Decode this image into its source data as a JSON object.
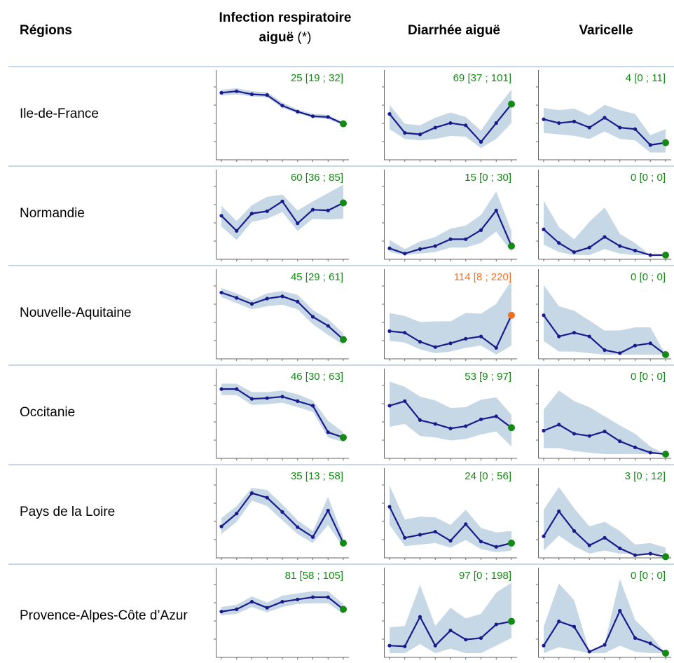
{
  "header": {
    "regions": "Régions",
    "ira_line1": "Infection respiratoire",
    "ira_line2": "aiguë",
    "ira_star": "(*)",
    "diarrhee": "Diarrhée aiguë",
    "varicelle": "Varicelle"
  },
  "colors": {
    "line": "#1a1a8c",
    "band": "#c6d7e6",
    "ok": "#138a13",
    "alert": "#f07020",
    "separator": "#c8d8e8"
  },
  "chart_data": [
    {
      "type": "line",
      "region": "Ile-de-France",
      "indicator": "Infection respiratoire aiguë",
      "annotation": "25 [19 ; 32]",
      "annotation_color": "ok",
      "last_point_color": "ok",
      "ylim": [
        0,
        100
      ],
      "values": [
        83,
        85,
        81,
        80,
        66,
        58,
        52,
        51,
        42
      ],
      "lower": [
        79,
        81,
        78,
        77,
        63,
        56,
        50,
        48,
        40
      ],
      "upper": [
        87,
        89,
        85,
        84,
        70,
        61,
        55,
        54,
        44
      ]
    },
    {
      "type": "line",
      "region": "Ile-de-France",
      "indicator": "Diarrhée aiguë",
      "annotation": "69 [37 ; 101]",
      "annotation_color": "ok",
      "last_point_color": "ok",
      "ylim": [
        0,
        100
      ],
      "values": [
        55,
        30,
        28,
        37,
        43,
        40,
        18,
        43,
        68
      ],
      "lower": [
        35,
        22,
        20,
        22,
        26,
        25,
        10,
        22,
        43
      ],
      "upper": [
        67,
        42,
        40,
        50,
        57,
        51,
        33,
        62,
        87
      ]
    },
    {
      "type": "line",
      "region": "Ile-de-France",
      "indicator": "Varicelle",
      "annotation": "4 [0 ; 11]",
      "annotation_color": "ok",
      "last_point_color": "ok",
      "ylim": [
        0,
        100
      ],
      "values": [
        48,
        43,
        45,
        37,
        50,
        37,
        35,
        14,
        17
      ],
      "lower": [
        30,
        28,
        26,
        22,
        32,
        22,
        20,
        4,
        4
      ],
      "upper": [
        63,
        60,
        62,
        53,
        67,
        60,
        55,
        27,
        35
      ]
    },
    {
      "type": "line",
      "region": "Normandie",
      "indicator": "Infection respiratoire aiguë",
      "annotation": "60 [36 ; 85]",
      "annotation_color": "ok",
      "last_point_color": "ok",
      "ylim": [
        0,
        100
      ],
      "values": [
        52,
        32,
        55,
        58,
        71,
        42,
        60,
        59,
        69
      ],
      "lower": [
        38,
        20,
        44,
        48,
        57,
        32,
        48,
        47,
        48
      ],
      "upper": [
        65,
        45,
        66,
        77,
        80,
        59,
        71,
        82,
        93
      ]
    },
    {
      "type": "line",
      "region": "Normandie",
      "indicator": "Diarrhée aiguë",
      "annotation": "15 [0 ; 30]",
      "annotation_color": "ok",
      "last_point_color": "ok",
      "ylim": [
        0,
        100
      ],
      "values": [
        9,
        2,
        8,
        12,
        21,
        21,
        33,
        59,
        12
      ],
      "lower": [
        4,
        0,
        2,
        4,
        10,
        10,
        16,
        31,
        4
      ],
      "upper": [
        20,
        8,
        18,
        24,
        35,
        39,
        53,
        84,
        32
      ]
    },
    {
      "type": "line",
      "region": "Normandie",
      "indicator": "Varicelle",
      "annotation": "0 [0 ; 0]",
      "annotation_color": "ok",
      "last_point_color": "ok",
      "ylim": [
        0,
        100
      ],
      "values": [
        34,
        16,
        4,
        10,
        24,
        12,
        6,
        0,
        0
      ],
      "lower": [
        14,
        4,
        0,
        0,
        8,
        2,
        0,
        0,
        0
      ],
      "upper": [
        72,
        37,
        21,
        44,
        63,
        28,
        16,
        0,
        0
      ]
    },
    {
      "type": "line",
      "region": "Nouvelle-Aquitaine",
      "indicator": "Infection respiratoire aiguë",
      "annotation": "45 [29 ; 61]",
      "annotation_color": "ok",
      "last_point_color": "ok",
      "ylim": [
        0,
        100
      ],
      "values": [
        82,
        75,
        67,
        74,
        77,
        70,
        50,
        38,
        20
      ],
      "lower": [
        76,
        68,
        60,
        64,
        66,
        60,
        40,
        26,
        13
      ],
      "upper": [
        88,
        81,
        72,
        81,
        84,
        79,
        59,
        47,
        28
      ]
    },
    {
      "type": "line",
      "region": "Nouvelle-Aquitaine",
      "indicator": "Diarrhée aiguë",
      "annotation": "114 [8 ; 220]",
      "annotation_color": "alert",
      "last_point_color": "alert",
      "ylim": [
        0,
        100
      ],
      "values": [
        31,
        29,
        17,
        10,
        15,
        21,
        24,
        9,
        52
      ],
      "lower": [
        18,
        16,
        7,
        2,
        4,
        9,
        12,
        0,
        12
      ],
      "upper": [
        55,
        51,
        43,
        44,
        44,
        55,
        54,
        67,
        98
      ]
    },
    {
      "type": "line",
      "region": "Nouvelle-Aquitaine",
      "indicator": "Varicelle",
      "annotation": "0 [0 ; 0]",
      "annotation_color": "ok",
      "last_point_color": "ok",
      "ylim": [
        0,
        100
      ],
      "values": [
        52,
        24,
        29,
        24,
        6,
        2,
        12,
        15,
        0
      ],
      "lower": [
        18,
        4,
        4,
        2,
        0,
        0,
        0,
        0,
        0
      ],
      "upper": [
        92,
        64,
        58,
        45,
        32,
        32,
        36,
        36,
        0
      ]
    },
    {
      "type": "line",
      "region": "Occitanie",
      "indicator": "Infection respiratoire aiguë",
      "annotation": "46 [30 ; 63]",
      "annotation_color": "ok",
      "last_point_color": "ok",
      "ylim": [
        0,
        100
      ],
      "values": [
        86,
        86,
        73,
        74,
        76,
        70,
        64,
        29,
        22
      ],
      "lower": [
        78,
        78,
        65,
        66,
        68,
        62,
        56,
        22,
        16
      ],
      "upper": [
        93,
        93,
        82,
        82,
        84,
        79,
        71,
        44,
        29
      ]
    },
    {
      "type": "line",
      "region": "Occitanie",
      "indicator": "Diarrhée aiguë",
      "annotation": "53 [9 ; 97]",
      "annotation_color": "ok",
      "last_point_color": "ok",
      "ylim": [
        0,
        100
      ],
      "values": [
        64,
        70,
        45,
        40,
        34,
        37,
        46,
        50,
        35
      ],
      "lower": [
        36,
        40,
        24,
        22,
        18,
        20,
        26,
        30,
        10
      ],
      "upper": [
        96,
        89,
        76,
        71,
        61,
        62,
        72,
        75,
        52
      ]
    },
    {
      "type": "line",
      "region": "Occitanie",
      "indicator": "Varicelle",
      "annotation": "0 [0 ; 0]",
      "annotation_color": "ok",
      "last_point_color": "ok",
      "ylim": [
        0,
        100
      ],
      "values": [
        31,
        39,
        27,
        24,
        30,
        17,
        9,
        2,
        0
      ],
      "lower": [
        8,
        8,
        4,
        2,
        0,
        0,
        0,
        0,
        0
      ],
      "upper": [
        59,
        84,
        70,
        62,
        50,
        38,
        27,
        10,
        0
      ]
    },
    {
      "type": "line",
      "region": "Pays de la Loire",
      "indicator": "Infection respiratoire aiguë",
      "annotation": "35 [13 ; 58]",
      "annotation_color": "ok",
      "last_point_color": "ok",
      "ylim": [
        0,
        100
      ],
      "values": [
        36,
        53,
        80,
        74,
        55,
        35,
        22,
        57,
        14
      ],
      "lower": [
        26,
        42,
        70,
        63,
        44,
        26,
        14,
        38,
        8
      ],
      "upper": [
        47,
        63,
        87,
        84,
        65,
        44,
        30,
        75,
        22
      ]
    },
    {
      "type": "line",
      "region": "Pays de la Loire",
      "indicator": "Diarrhée aiguë",
      "annotation": "24 [0 ; 56]",
      "annotation_color": "ok",
      "last_point_color": "ok",
      "ylim": [
        0,
        100
      ],
      "values": [
        62,
        21,
        25,
        29,
        17,
        39,
        16,
        9,
        14
      ],
      "lower": [
        38,
        10,
        12,
        14,
        8,
        18,
        6,
        2,
        4
      ],
      "upper": [
        90,
        45,
        49,
        48,
        38,
        58,
        34,
        28,
        30
      ]
    },
    {
      "type": "line",
      "region": "Pays de la Loire",
      "indicator": "Varicelle",
      "annotation": "3 [0 ; 12]",
      "annotation_color": "ok",
      "last_point_color": "ok",
      "ylim": [
        0,
        100
      ],
      "values": [
        23,
        56,
        30,
        11,
        21,
        7,
        -2,
        0,
        -4
      ],
      "lower": [
        4,
        24,
        10,
        0,
        4,
        0,
        0,
        0,
        0
      ],
      "upper": [
        58,
        88,
        60,
        36,
        42,
        30,
        12,
        14,
        8
      ]
    },
    {
      "type": "line",
      "region": "Provence-Alpes-Côte d’Azur",
      "indicator": "Infection respiratoire aiguë",
      "annotation": "81 [58 ; 105]",
      "annotation_color": "ok",
      "last_point_color": "ok",
      "ylim": [
        0,
        100
      ],
      "values": [
        55,
        58,
        68,
        60,
        68,
        71,
        74,
        74,
        58
      ],
      "lower": [
        50,
        52,
        61,
        54,
        61,
        65,
        66,
        66,
        52
      ],
      "upper": [
        61,
        64,
        75,
        67,
        76,
        79,
        82,
        82,
        65
      ]
    },
    {
      "type": "line",
      "region": "Provence-Alpes-Côte d’Azur",
      "indicator": "Diarrhée aiguë",
      "annotation": "97 [0 ; 198]",
      "annotation_color": "ok",
      "last_point_color": "ok",
      "ylim": [
        0,
        100
      ],
      "values": [
        10,
        9,
        48,
        10,
        30,
        18,
        20,
        38,
        42
      ],
      "lower": [
        0,
        0,
        12,
        0,
        6,
        0,
        0,
        10,
        20
      ],
      "upper": [
        34,
        36,
        90,
        36,
        60,
        46,
        52,
        80,
        93
      ]
    },
    {
      "type": "line",
      "region": "Provence-Alpes-Côte d’Azur",
      "indicator": "Varicelle",
      "annotation": "0 [0 ; 0]",
      "annotation_color": "ok",
      "last_point_color": "ok",
      "ylim": [
        0,
        100
      ],
      "values": [
        10,
        42,
        35,
        2,
        11,
        56,
        20,
        13,
        0
      ],
      "lower": [
        0,
        8,
        4,
        0,
        0,
        10,
        2,
        0,
        0
      ],
      "upper": [
        35,
        92,
        70,
        2,
        12,
        98,
        44,
        24,
        0
      ]
    }
  ]
}
